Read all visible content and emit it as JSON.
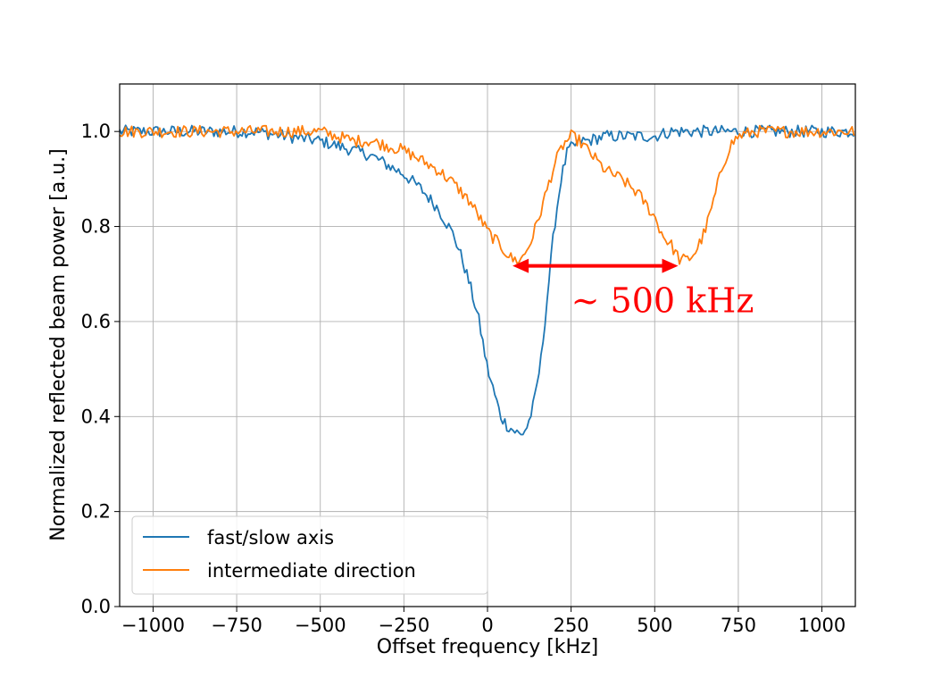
{
  "chart_data": {
    "type": "line",
    "title": "",
    "xlabel": "Offset frequency [kHz]",
    "ylabel": "Normalized reflected beam power [a.u.]",
    "xlim": [
      -1100,
      1100
    ],
    "ylim": [
      0.0,
      1.1
    ],
    "xticks": [
      -1000,
      -750,
      -500,
      -250,
      0,
      250,
      500,
      750,
      1000
    ],
    "xtick_labels": [
      "−1000",
      "−750",
      "−500",
      "−250",
      "0",
      "250",
      "500",
      "750",
      "1000"
    ],
    "yticks": [
      0.0,
      0.2,
      0.4,
      0.6,
      0.8,
      1.0
    ],
    "ytick_labels": [
      "0.0",
      "0.2",
      "0.4",
      "0.6",
      "0.8",
      "1.0"
    ],
    "grid": true,
    "legend_position": "lower-left",
    "series": [
      {
        "name": "fast/slow axis",
        "color": "#1f77b4",
        "x": [
          -1100,
          -1000,
          -900,
          -800,
          -700,
          -600,
          -500,
          -450,
          -400,
          -350,
          -300,
          -250,
          -200,
          -150,
          -125,
          -100,
          -75,
          -50,
          -25,
          0,
          20,
          40,
          60,
          80,
          100,
          120,
          140,
          160,
          180,
          200,
          220,
          240,
          260,
          280,
          300,
          350,
          400,
          450,
          500,
          550,
          600,
          650,
          700,
          750,
          800,
          850,
          900,
          950,
          1000,
          1050,
          1100
        ],
        "y": [
          1.0,
          1.0,
          1.0,
          1.0,
          1.0,
          0.99,
          0.98,
          0.97,
          0.96,
          0.95,
          0.93,
          0.91,
          0.88,
          0.84,
          0.81,
          0.78,
          0.73,
          0.67,
          0.6,
          0.5,
          0.45,
          0.4,
          0.38,
          0.37,
          0.36,
          0.38,
          0.43,
          0.52,
          0.66,
          0.8,
          0.9,
          0.96,
          0.97,
          0.98,
          0.98,
          0.99,
          0.99,
          0.99,
          0.99,
          1.0,
          1.0,
          1.0,
          1.0,
          1.0,
          1.0,
          1.0,
          1.0,
          1.0,
          1.0,
          1.0,
          1.0
        ]
      },
      {
        "name": "intermediate direction",
        "color": "#ff7f0e",
        "x": [
          -1100,
          -1000,
          -900,
          -800,
          -700,
          -600,
          -500,
          -450,
          -400,
          -350,
          -300,
          -250,
          -200,
          -150,
          -100,
          -50,
          0,
          25,
          50,
          75,
          100,
          125,
          150,
          175,
          200,
          225,
          250,
          275,
          300,
          325,
          350,
          400,
          450,
          500,
          525,
          550,
          575,
          600,
          625,
          650,
          675,
          700,
          725,
          750,
          800,
          900,
          1000,
          1100
        ],
        "y": [
          1.0,
          1.0,
          1.0,
          1.0,
          1.0,
          1.0,
          1.0,
          0.99,
          0.98,
          0.98,
          0.97,
          0.96,
          0.94,
          0.92,
          0.89,
          0.85,
          0.79,
          0.77,
          0.75,
          0.73,
          0.73,
          0.76,
          0.81,
          0.87,
          0.93,
          0.97,
          0.99,
          0.98,
          0.96,
          0.94,
          0.92,
          0.9,
          0.87,
          0.82,
          0.78,
          0.76,
          0.73,
          0.73,
          0.75,
          0.79,
          0.85,
          0.92,
          0.97,
          0.99,
          1.0,
          1.0,
          1.0,
          1.0
        ]
      }
    ],
    "annotations": [
      {
        "type": "double-arrow",
        "color": "#ff0000",
        "x_start": 75,
        "x_end": 570,
        "y": 0.717
      },
      {
        "type": "text",
        "text": "~ 500 kHz",
        "color": "#ff0000",
        "x": 250,
        "y": 0.62
      }
    ]
  }
}
